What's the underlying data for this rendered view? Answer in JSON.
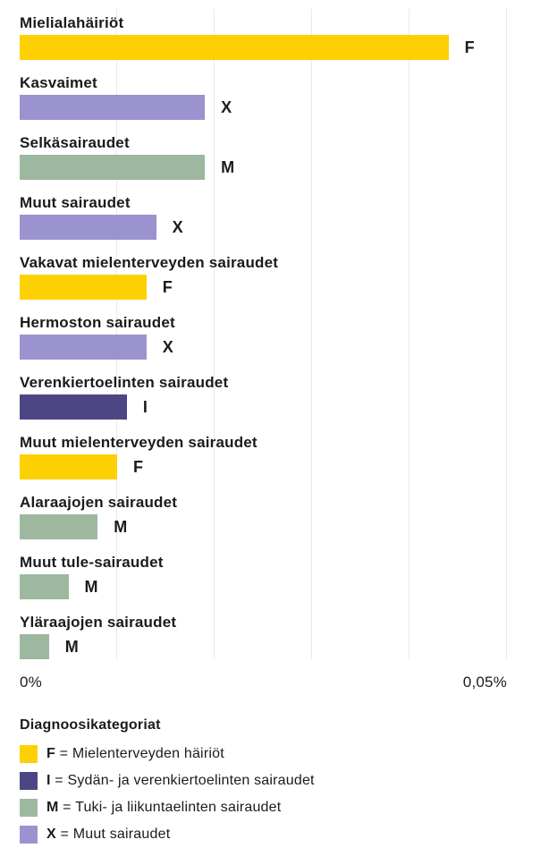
{
  "chart_data": {
    "type": "bar",
    "orientation": "horizontal",
    "unit": "%",
    "x_axis": {
      "min": 0,
      "max": 0.05,
      "min_label": "0%",
      "max_label": "0,05%",
      "gridline_interval": 0.01,
      "grid": true
    },
    "colors": {
      "F": "#fdd101",
      "I": "#4d4684",
      "M": "#9db89f",
      "X": "#9b93cf"
    },
    "bars": [
      {
        "label": "Mielialahäiriöt",
        "category": "F",
        "value": 0.044
      },
      {
        "label": "Kasvaimet",
        "category": "X",
        "value": 0.019
      },
      {
        "label": "Selkäsairaudet",
        "category": "M",
        "value": 0.019
      },
      {
        "label": "Muut sairaudet",
        "category": "X",
        "value": 0.014
      },
      {
        "label": "Vakavat mielenterveyden sairaudet",
        "category": "F",
        "value": 0.013
      },
      {
        "label": "Hermoston sairaudet",
        "category": "X",
        "value": 0.013
      },
      {
        "label": "Verenkiertoelinten sairaudet",
        "category": "I",
        "value": 0.011
      },
      {
        "label": "Muut mielenterveyden sairaudet",
        "category": "F",
        "value": 0.01
      },
      {
        "label": "Alaraajojen sairaudet",
        "category": "M",
        "value": 0.008
      },
      {
        "label": "Muut tule-sairaudet",
        "category": "M",
        "value": 0.005
      },
      {
        "label": "Yläraajojen sairaudet",
        "category": "M",
        "value": 0.003
      }
    ],
    "legend": {
      "title": "Diagnoosikategoriat",
      "position": "bottom",
      "items": [
        {
          "letter": "F",
          "text": "= Mielenterveyden häiriöt"
        },
        {
          "letter": "I",
          "text": "= Sydän- ja verenkiertoelinten sairaudet"
        },
        {
          "letter": "M",
          "text": "= Tuki- ja liikuntaelinten sairaudet"
        },
        {
          "letter": "X",
          "text": "= Muut sairaudet"
        }
      ]
    }
  }
}
